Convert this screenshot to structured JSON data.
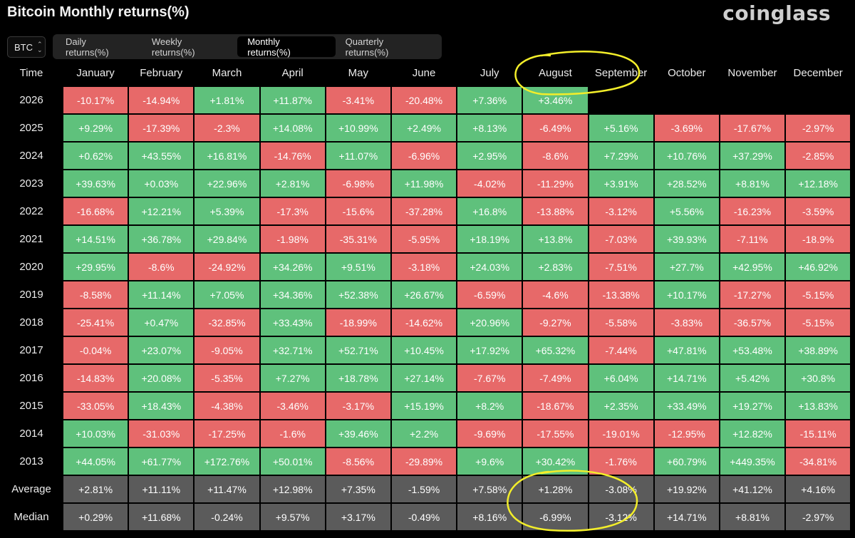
{
  "title": "Bitcoin Monthly returns(%)",
  "brand": "coinglass",
  "asset": "BTC",
  "tabs": [
    {
      "label": "Daily returns(%)",
      "active": false
    },
    {
      "label": "Weekly returns(%)",
      "active": false
    },
    {
      "label": "Monthly returns(%)",
      "active": true
    },
    {
      "label": "Quarterly returns(%)",
      "active": false
    }
  ],
  "colors": {
    "positive": "#5fc17c",
    "negative": "#e76969",
    "stat": "#5b5b5b",
    "annotation": "#f3ee2a"
  },
  "chart_data": {
    "type": "heatmap",
    "title": "Bitcoin Monthly returns(%)",
    "row_header": "Time",
    "columns": [
      "January",
      "February",
      "March",
      "April",
      "May",
      "June",
      "July",
      "August",
      "September",
      "October",
      "November",
      "December"
    ],
    "rows": [
      {
        "label": "2026",
        "values": [
          "-10.17%",
          "-14.94%",
          "+1.81%",
          "+11.87%",
          "-3.41%",
          "-20.48%",
          "+7.36%",
          "+3.46%",
          "",
          "",
          "",
          ""
        ]
      },
      {
        "label": "2025",
        "values": [
          "+9.29%",
          "-17.39%",
          "-2.3%",
          "+14.08%",
          "+10.99%",
          "+2.49%",
          "+8.13%",
          "-6.49%",
          "+5.16%",
          "-3.69%",
          "-17.67%",
          "-2.97%"
        ]
      },
      {
        "label": "2024",
        "values": [
          "+0.62%",
          "+43.55%",
          "+16.81%",
          "-14.76%",
          "+11.07%",
          "-6.96%",
          "+2.95%",
          "-8.6%",
          "+7.29%",
          "+10.76%",
          "+37.29%",
          "-2.85%"
        ]
      },
      {
        "label": "2023",
        "values": [
          "+39.63%",
          "+0.03%",
          "+22.96%",
          "+2.81%",
          "-6.98%",
          "+11.98%",
          "-4.02%",
          "-11.29%",
          "+3.91%",
          "+28.52%",
          "+8.81%",
          "+12.18%"
        ]
      },
      {
        "label": "2022",
        "values": [
          "-16.68%",
          "+12.21%",
          "+5.39%",
          "-17.3%",
          "-15.6%",
          "-37.28%",
          "+16.8%",
          "-13.88%",
          "-3.12%",
          "+5.56%",
          "-16.23%",
          "-3.59%"
        ]
      },
      {
        "label": "2021",
        "values": [
          "+14.51%",
          "+36.78%",
          "+29.84%",
          "-1.98%",
          "-35.31%",
          "-5.95%",
          "+18.19%",
          "+13.8%",
          "-7.03%",
          "+39.93%",
          "-7.11%",
          "-18.9%"
        ]
      },
      {
        "label": "2020",
        "values": [
          "+29.95%",
          "-8.6%",
          "-24.92%",
          "+34.26%",
          "+9.51%",
          "-3.18%",
          "+24.03%",
          "+2.83%",
          "-7.51%",
          "+27.7%",
          "+42.95%",
          "+46.92%"
        ]
      },
      {
        "label": "2019",
        "values": [
          "-8.58%",
          "+11.14%",
          "+7.05%",
          "+34.36%",
          "+52.38%",
          "+26.67%",
          "-6.59%",
          "-4.6%",
          "-13.38%",
          "+10.17%",
          "-17.27%",
          "-5.15%"
        ]
      },
      {
        "label": "2018",
        "values": [
          "-25.41%",
          "+0.47%",
          "-32.85%",
          "+33.43%",
          "-18.99%",
          "-14.62%",
          "+20.96%",
          "-9.27%",
          "-5.58%",
          "-3.83%",
          "-36.57%",
          "-5.15%"
        ]
      },
      {
        "label": "2017",
        "values": [
          "-0.04%",
          "+23.07%",
          "-9.05%",
          "+32.71%",
          "+52.71%",
          "+10.45%",
          "+17.92%",
          "+65.32%",
          "-7.44%",
          "+47.81%",
          "+53.48%",
          "+38.89%"
        ]
      },
      {
        "label": "2016",
        "values": [
          "-14.83%",
          "+20.08%",
          "-5.35%",
          "+7.27%",
          "+18.78%",
          "+27.14%",
          "-7.67%",
          "-7.49%",
          "+6.04%",
          "+14.71%",
          "+5.42%",
          "+30.8%"
        ]
      },
      {
        "label": "2015",
        "values": [
          "-33.05%",
          "+18.43%",
          "-4.38%",
          "-3.46%",
          "-3.17%",
          "+15.19%",
          "+8.2%",
          "-18.67%",
          "+2.35%",
          "+33.49%",
          "+19.27%",
          "+13.83%"
        ]
      },
      {
        "label": "2014",
        "values": [
          "+10.03%",
          "-31.03%",
          "-17.25%",
          "-1.6%",
          "+39.46%",
          "+2.2%",
          "-9.69%",
          "-17.55%",
          "-19.01%",
          "-12.95%",
          "+12.82%",
          "-15.11%"
        ]
      },
      {
        "label": "2013",
        "values": [
          "+44.05%",
          "+61.77%",
          "+172.76%",
          "+50.01%",
          "-8.56%",
          "-29.89%",
          "+9.6%",
          "+30.42%",
          "-1.76%",
          "+60.79%",
          "+449.35%",
          "-34.81%"
        ]
      }
    ],
    "summary_rows": [
      {
        "label": "Average",
        "values": [
          "+2.81%",
          "+11.11%",
          "+11.47%",
          "+12.98%",
          "+7.35%",
          "-1.59%",
          "+7.58%",
          "+1.28%",
          "-3.08%",
          "+19.92%",
          "+41.12%",
          "+4.16%"
        ]
      },
      {
        "label": "Median",
        "values": [
          "+0.29%",
          "+11.68%",
          "-0.24%",
          "+9.57%",
          "+3.17%",
          "-0.49%",
          "+8.16%",
          "-6.99%",
          "-3.12%",
          "+14.71%",
          "+8.81%",
          "-2.97%"
        ]
      }
    ]
  }
}
